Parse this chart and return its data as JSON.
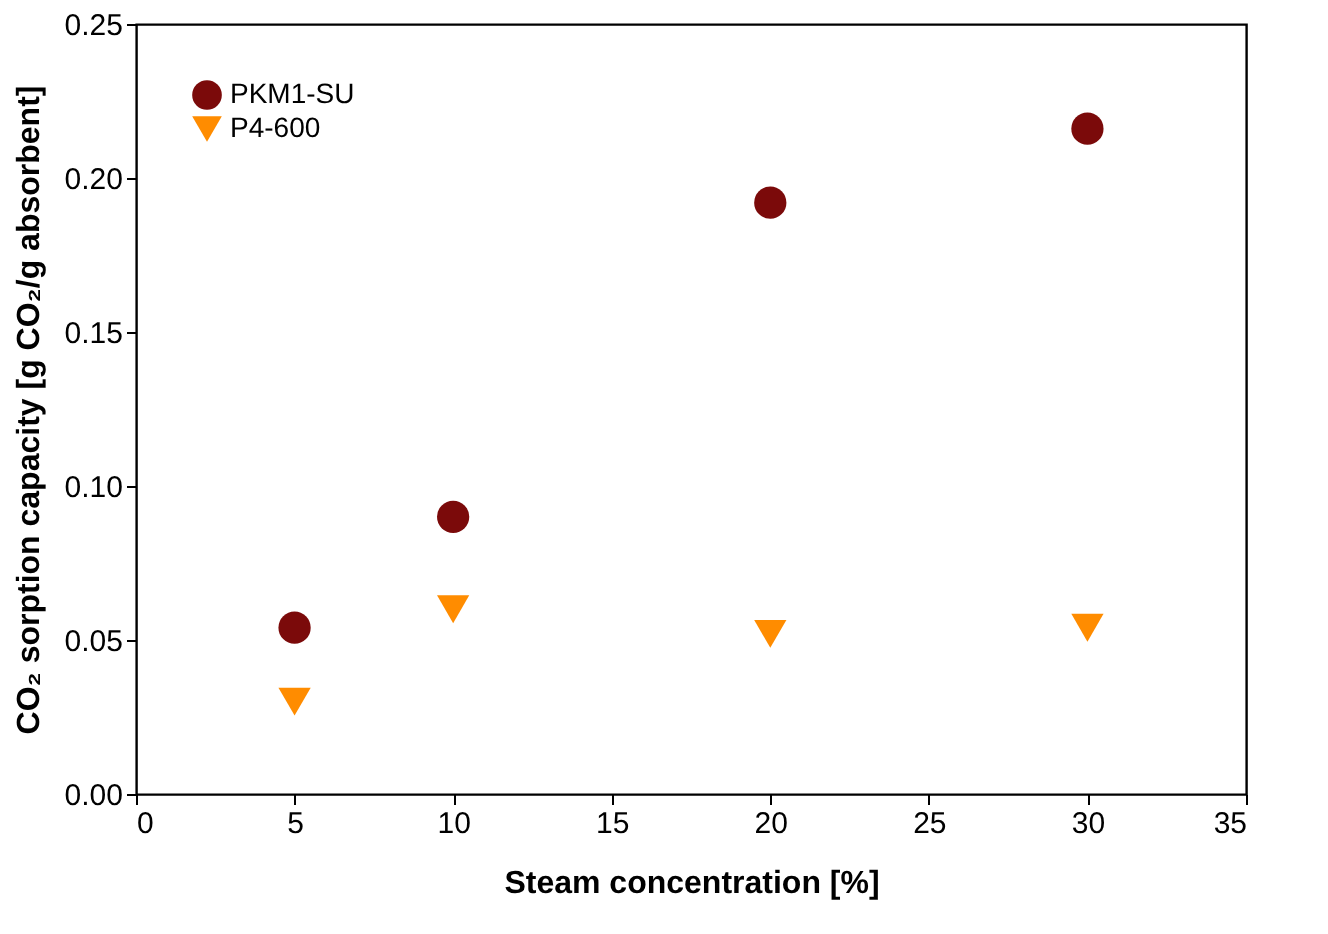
{
  "chart_data": {
    "type": "scatter",
    "xlabel": "Steam concentration [%]",
    "ylabel": "CO₂ sorption capacity [g CO₂/g absorbent]",
    "x": [
      5,
      10,
      20,
      30
    ],
    "series": [
      {
        "name": "PKM1-SU",
        "color": "#7b0a0a",
        "marker": "circle",
        "values": [
          0.054,
          0.09,
          0.192,
          0.216
        ]
      },
      {
        "name": "P4-600",
        "color": "#ff8c00",
        "marker": "triangle",
        "values": [
          0.03,
          0.06,
          0.052,
          0.054
        ]
      }
    ],
    "xlim": [
      0,
      35
    ],
    "xticks": [
      0,
      5,
      10,
      15,
      20,
      25,
      30,
      35
    ],
    "ylim": [
      0,
      0.25
    ],
    "yticks": [
      {
        "value": 0,
        "label": "0.00"
      },
      0.05,
      {
        "value": 0.1,
        "label": "0.10"
      },
      0.15,
      {
        "value": 0.2,
        "label": "0.20"
      },
      0.25
    ],
    "grid": false,
    "legend": "top left"
  }
}
